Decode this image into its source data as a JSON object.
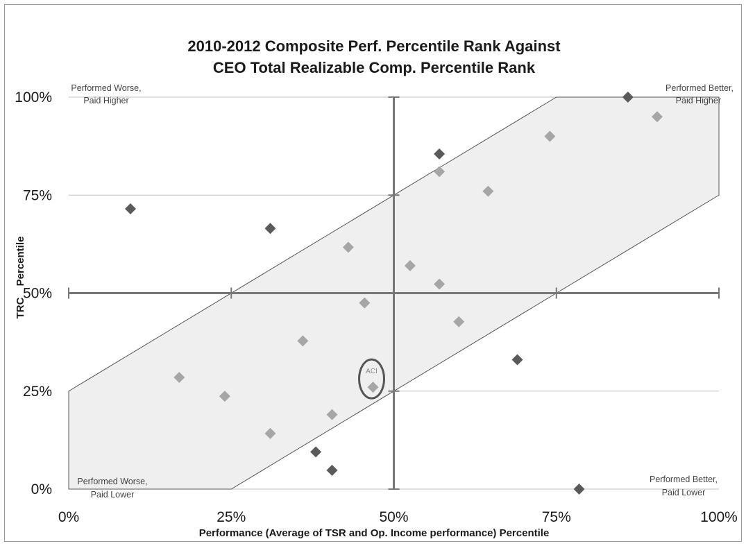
{
  "chart_data": {
    "type": "scatter",
    "title_lines": [
      "2010-2012 Composite Perf. Percentile Rank Against",
      "CEO Total Realizable Comp. Percentile Rank"
    ],
    "xlabel": "Performance (Average of TSR and Op. Income performance) Percentile",
    "ylabel_parts": [
      "TRC",
      "Percentile"
    ],
    "xlim": [
      0,
      1
    ],
    "ylim": [
      0,
      1
    ],
    "x_ticks": [
      0,
      0.25,
      0.5,
      0.75,
      1
    ],
    "y_ticks": [
      0,
      0.25,
      0.5,
      0.75,
      1
    ],
    "x_tick_labels": [
      "0%",
      "25%",
      "50%",
      "75%",
      "100%"
    ],
    "y_tick_labels": [
      "0%",
      "25%",
      "50%",
      "75%",
      "100%"
    ],
    "grid": true,
    "colors": {
      "outside": "#5a5a5a",
      "inside": "#a6a6a6",
      "band_fill": "#efefef",
      "band_stroke": "#555555",
      "crosshair": "#777777",
      "grid": "#bfbfbf",
      "highlight": "#555555"
    },
    "band": [
      [
        0,
        0.25
      ],
      [
        0,
        0
      ],
      [
        0.25,
        0
      ],
      [
        1,
        0.75
      ],
      [
        1,
        1
      ],
      [
        0.75,
        1
      ]
    ],
    "quadrant_labels": {
      "top_left": [
        "Performed Worse,",
        "Paid Higher"
      ],
      "top_right": [
        "Performed Better,",
        "Paid Higher"
      ],
      "bottom_left": [
        "Performed Worse,",
        "Paid Lower"
      ],
      "bottom_right": [
        "Performed Better,",
        "Paid Lower"
      ]
    },
    "series": [
      {
        "group": "outside",
        "points": [
          [
            0.095,
            0.715
          ],
          [
            0.31,
            0.665
          ],
          [
            0.38,
            0.095
          ],
          [
            0.405,
            0.048
          ],
          [
            0.57,
            0.855
          ],
          [
            0.69,
            0.33
          ],
          [
            0.785,
            0.0
          ],
          [
            0.86,
            1.0
          ]
        ]
      },
      {
        "group": "inside",
        "points": [
          [
            0.17,
            0.285
          ],
          [
            0.24,
            0.237
          ],
          [
            0.31,
            0.142
          ],
          [
            0.36,
            0.378
          ],
          [
            0.405,
            0.19
          ],
          [
            0.43,
            0.617
          ],
          [
            0.455,
            0.475
          ],
          [
            0.525,
            0.57
          ],
          [
            0.57,
            0.81
          ],
          [
            0.57,
            0.523
          ],
          [
            0.6,
            0.427
          ],
          [
            0.645,
            0.76
          ],
          [
            0.74,
            0.9
          ],
          [
            0.905,
            0.95
          ],
          [
            0.468,
            0.26
          ]
        ]
      }
    ],
    "highlight": {
      "label": "ACI",
      "x": 0.468,
      "y": 0.26
    }
  }
}
